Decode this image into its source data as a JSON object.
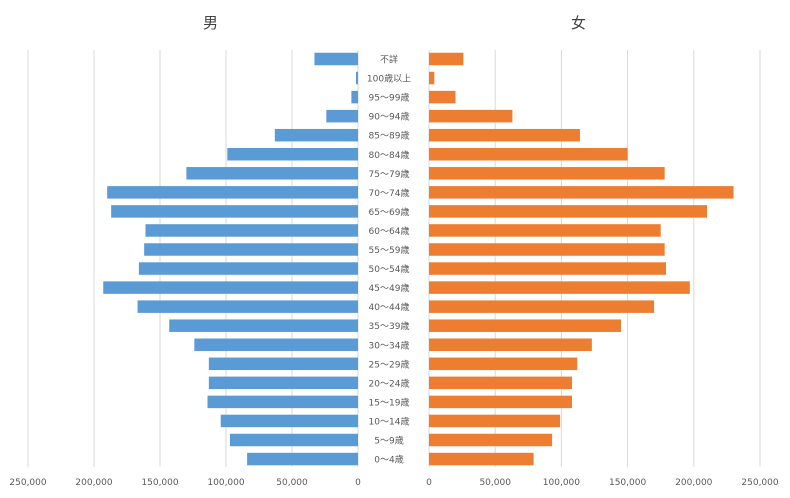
{
  "chart_data": {
    "type": "bar",
    "orientation": "horizontal-population-pyramid",
    "titles": {
      "left": "男",
      "right": "女"
    },
    "categories": [
      "不詳",
      "100歳以上",
      "95～99歳",
      "90～94歳",
      "85～89歳",
      "80～84歳",
      "75～79歳",
      "70～74歳",
      "65～69歳",
      "60～64歳",
      "55～59歳",
      "50～54歳",
      "45～49歳",
      "40～44歳",
      "35～39歳",
      "30～34歳",
      "25～29歳",
      "20～24歳",
      "15～19歳",
      "10～14歳",
      "5～9歳",
      "0～4歳"
    ],
    "series": [
      {
        "name": "男",
        "color": "#5b9bd5",
        "values": [
          33000,
          1500,
          5000,
          24000,
          63000,
          99000,
          130000,
          190000,
          187000,
          161000,
          162000,
          166000,
          193000,
          167000,
          143000,
          124000,
          113000,
          113000,
          114000,
          104000,
          97000,
          84000
        ]
      },
      {
        "name": "女",
        "color": "#ed7d31",
        "values": [
          26000,
          4000,
          20000,
          63000,
          114000,
          150000,
          178000,
          230000,
          210000,
          175000,
          178000,
          179000,
          197000,
          170000,
          145000,
          123000,
          112000,
          108000,
          108000,
          99000,
          93000,
          79000
        ]
      }
    ],
    "xlim": [
      0,
      250000
    ],
    "left_ticks": [
      "250,000",
      "200,000",
      "150,000",
      "100,000",
      "50,000",
      "0"
    ],
    "right_ticks": [
      "0",
      "50,000",
      "100,000",
      "150,000",
      "200,000",
      "250,000"
    ],
    "tick_values": [
      0,
      50000,
      100000,
      150000,
      200000,
      250000
    ],
    "grid": true,
    "gridline_color": "#d9d9d9",
    "label_color": "#595959"
  }
}
